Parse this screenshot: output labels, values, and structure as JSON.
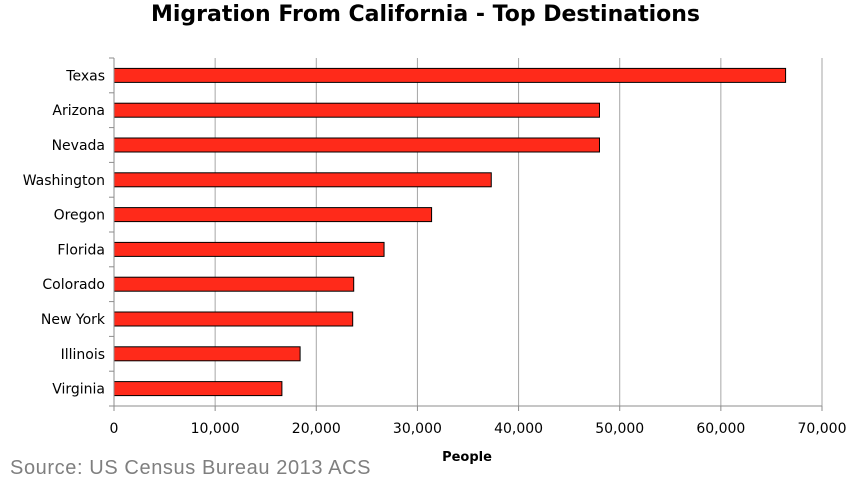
{
  "chart_data": {
    "type": "bar",
    "orientation": "horizontal",
    "title": "Migration From California - Top Destinations",
    "xlabel": "People",
    "ylabel": "",
    "categories": [
      "Texas",
      "Arizona",
      "Nevada",
      "Washington",
      "Oregon",
      "Florida",
      "Colorado",
      "New York",
      "Illinois",
      "Virginia"
    ],
    "values": [
      66400,
      48000,
      48000,
      37300,
      31400,
      26700,
      23700,
      23600,
      18400,
      16600
    ],
    "xlim": [
      0,
      70000
    ],
    "x_ticks": [
      0,
      10000,
      20000,
      30000,
      40000,
      50000,
      60000,
      70000
    ],
    "x_tick_labels": [
      "0",
      "10,000",
      "20,000",
      "30,000",
      "40,000",
      "50,000",
      "60,000",
      "70,000"
    ],
    "grid": "vertical",
    "legend": "none",
    "bar_color": "#ff2a1a",
    "bar_edge_color": "#000000",
    "grid_color": "#a6a6a6"
  },
  "source_note": "Source: US Census Bureau 2013 ACS"
}
